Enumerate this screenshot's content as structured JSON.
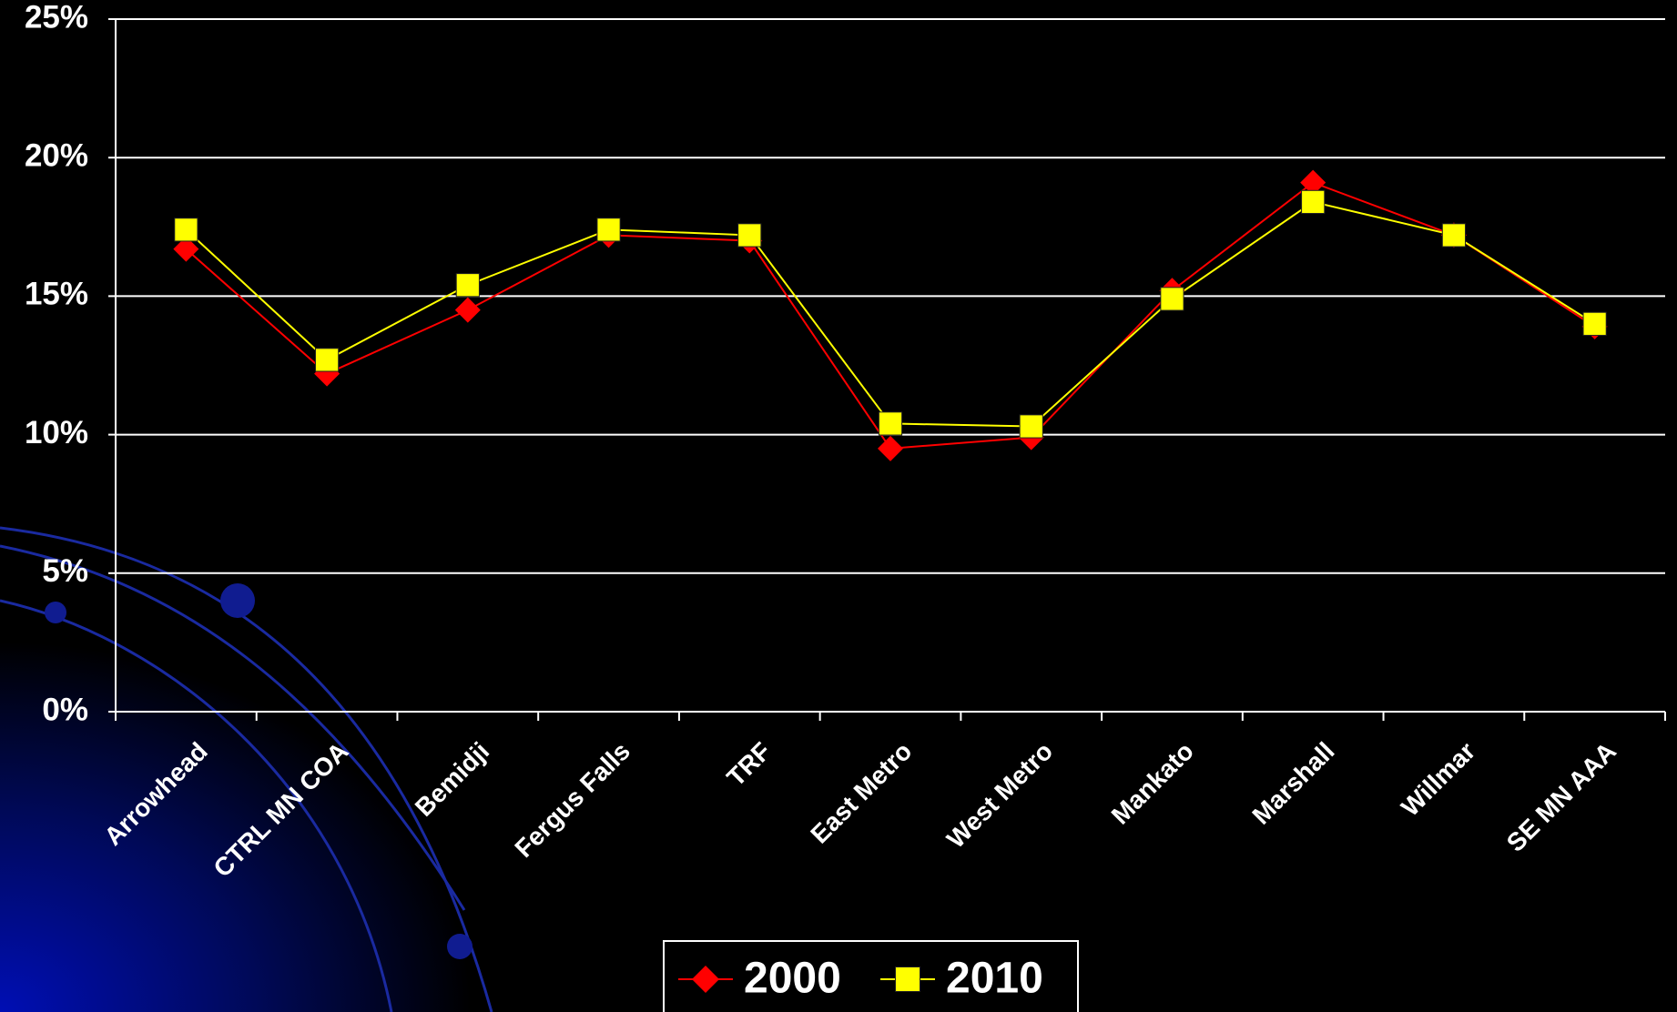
{
  "chart_data": {
    "type": "line",
    "categories": [
      "Arrowhead",
      "CTRL MN COA",
      "Bemidji",
      "Fergus Falls",
      "TRF",
      "East Metro",
      "West Metro",
      "Mankato",
      "Marshall",
      "Willmar",
      "SE MN AAA"
    ],
    "series": [
      {
        "name": "2000",
        "color": "#ff0000",
        "marker": "diamond",
        "values": [
          16.7,
          12.2,
          14.5,
          17.2,
          17.0,
          9.5,
          9.9,
          15.2,
          19.1,
          17.2,
          13.9
        ]
      },
      {
        "name": "2010",
        "color": "#ffff00",
        "marker": "square",
        "values": [
          17.4,
          12.7,
          15.4,
          17.4,
          17.2,
          10.4,
          10.3,
          14.9,
          18.4,
          17.2,
          14.0
        ]
      }
    ],
    "ylim": [
      0,
      25
    ],
    "yticks": [
      {
        "value": 0,
        "label": "0%"
      },
      {
        "value": 5,
        "label": "5%"
      },
      {
        "value": 10,
        "label": "10%"
      },
      {
        "value": 15,
        "label": "15%"
      },
      {
        "value": 20,
        "label": "20%"
      },
      {
        "value": 25,
        "label": "25%"
      }
    ],
    "grid": true,
    "legend": "bottom"
  }
}
